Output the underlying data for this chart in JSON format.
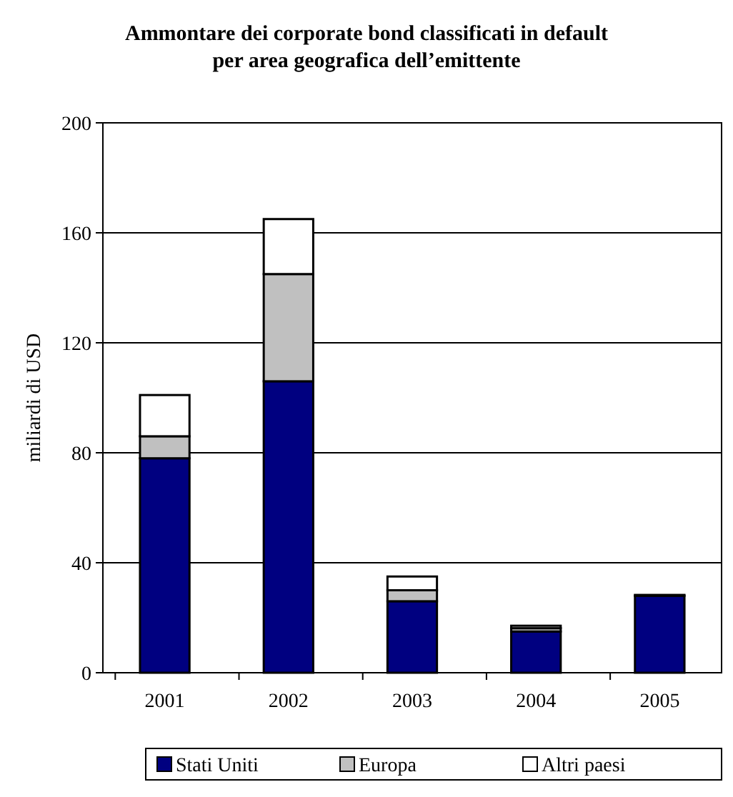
{
  "chart_data": {
    "type": "bar",
    "title": "Ammontare dei corporate bond classificati in default per area geografica dell’emittente",
    "ylabel": "miliardi di USD",
    "categories": [
      "2001",
      "2002",
      "2003",
      "2004",
      "2005"
    ],
    "stacked": true,
    "series": [
      {
        "name": "Stati Uniti",
        "color": "#000080",
        "values": [
          78,
          106,
          26,
          15,
          28
        ]
      },
      {
        "name": "Europa",
        "color": "#c0c0c0",
        "values": [
          8,
          39,
          4,
          1.2,
          null
        ]
      },
      {
        "name": "Altri paesi",
        "color": "#ffffff",
        "values": [
          15,
          20,
          5,
          0.9,
          0.3
        ]
      }
    ],
    "ylim": [
      0,
      200
    ],
    "yticks": [
      0,
      40,
      80,
      120,
      160,
      200
    ],
    "grid": "y",
    "legend": "bottom"
  }
}
